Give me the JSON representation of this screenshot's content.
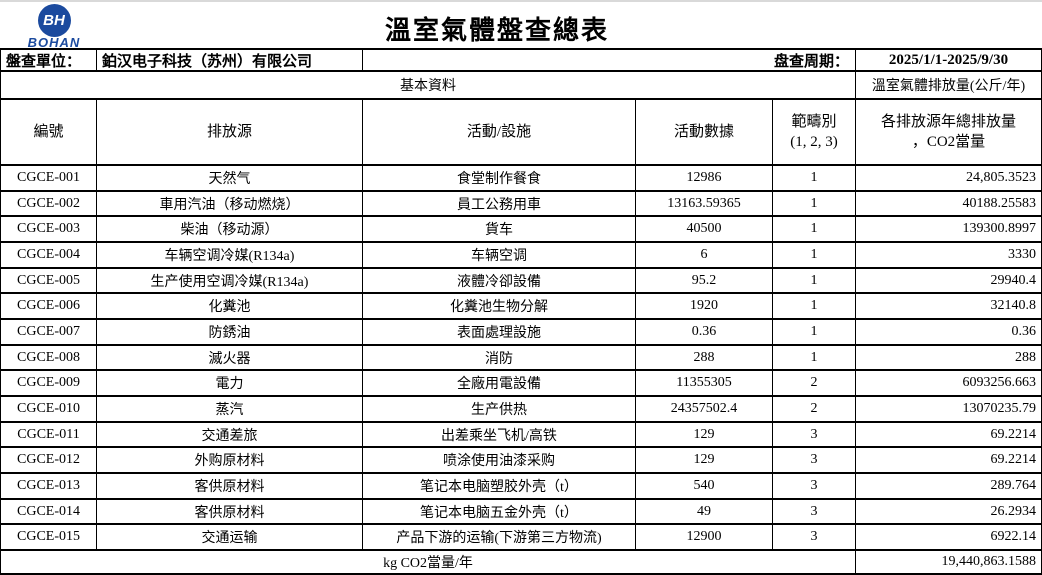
{
  "logo": {
    "monogram": "BH",
    "name": "BOHAN",
    "color": "#1b4a9e"
  },
  "title": "溫室氣體盤查總表",
  "info": {
    "unit_label": "盤查單位：",
    "unit_value": "鉑汉电子科技（苏州）有限公司",
    "period_label": "盘查周期：",
    "period_value": "2025/1/1-2025/9/30"
  },
  "section": {
    "basic_label": "基本資料",
    "emission_label": "溫室氣體排放量(公斤/年)"
  },
  "columns": {
    "id": "編號",
    "source": "排放源",
    "activity": "活動/設施",
    "activity_data": "活動數據",
    "scope_line1": "範疇別",
    "scope_line2": "(1, 2, 3)",
    "total_line1": "各排放源年總排放量",
    "total_line2": "，CO2當量"
  },
  "rows": [
    {
      "id": "CGCE-001",
      "source": "天然气",
      "activity": "食堂制作餐食",
      "data": "12986",
      "scope": "1",
      "total": "24,805.3523"
    },
    {
      "id": "CGCE-002",
      "source": "車用汽油（移动燃烧）",
      "activity": "員工公務用車",
      "data": "13163.59365",
      "scope": "1",
      "total": "40188.25583"
    },
    {
      "id": "CGCE-003",
      "source": "柴油（移动源）",
      "activity": "貨车",
      "data": "40500",
      "scope": "1",
      "total": "139300.8997"
    },
    {
      "id": "CGCE-004",
      "source": "车辆空调冷媒(R134a)",
      "activity": "车辆空调",
      "data": "6",
      "scope": "1",
      "total": "3330"
    },
    {
      "id": "CGCE-005",
      "source": "生产使用空调冷媒(R134a)",
      "activity": "液體冷卻設備",
      "data": "95.2",
      "scope": "1",
      "total": "29940.4"
    },
    {
      "id": "CGCE-006",
      "source": "化糞池",
      "activity": "化糞池生物分解",
      "data": "1920",
      "scope": "1",
      "total": "32140.8"
    },
    {
      "id": "CGCE-007",
      "source": "防銹油",
      "activity": "表面處理設施",
      "data": "0.36",
      "scope": "1",
      "total": "0.36"
    },
    {
      "id": "CGCE-008",
      "source": "滅火器",
      "activity": "消防",
      "data": "288",
      "scope": "1",
      "total": "288"
    },
    {
      "id": "CGCE-009",
      "source": "電力",
      "activity": "全廠用電設備",
      "data": "11355305",
      "scope": "2",
      "total": "6093256.663"
    },
    {
      "id": "CGCE-010",
      "source": "蒸汽",
      "activity": "生产供热",
      "data": "24357502.4",
      "scope": "2",
      "total": "13070235.79"
    },
    {
      "id": "CGCE-011",
      "source": "交通差旅",
      "activity": "出差乘坐飞机/高铁",
      "data": "129",
      "scope": "3",
      "total": "69.2214"
    },
    {
      "id": "CGCE-012",
      "source": "外购原材料",
      "activity": "喷涂使用油漆采购",
      "data": "129",
      "scope": "3",
      "total": "69.2214"
    },
    {
      "id": "CGCE-013",
      "source": "客供原材料",
      "activity": "笔记本电脑塑胶外壳（t）",
      "data": "540",
      "scope": "3",
      "total": "289.764"
    },
    {
      "id": "CGCE-014",
      "source": "客供原材料",
      "activity": "笔记本电脑五金外壳（t）",
      "data": "49",
      "scope": "3",
      "total": "26.2934"
    },
    {
      "id": "CGCE-015",
      "source": "交通运输",
      "activity": "产品下游的运输(下游第三方物流)",
      "data": "12900",
      "scope": "3",
      "total": "6922.14"
    }
  ],
  "footer": {
    "label": "kg CO2當量/年",
    "total": "19,440,863.1588"
  }
}
